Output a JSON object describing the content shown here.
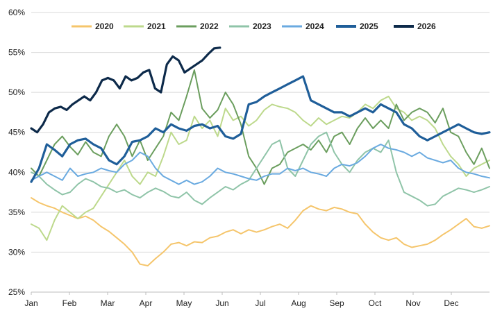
{
  "chart_data": {
    "type": "line",
    "title": "",
    "xlabel": "",
    "ylabel": "",
    "x_ticks": [
      "Jan",
      "Feb",
      "Mar",
      "Apr",
      "May",
      "Jun",
      "Jul",
      "Aug",
      "Sep",
      "Oct",
      "Nov",
      "Dec"
    ],
    "y_ticks": [
      "25%",
      "30%",
      "35%",
      "40%",
      "45%",
      "50%",
      "55%",
      "60%"
    ],
    "ylim": [
      25,
      60
    ],
    "xlim": [
      "Jan 1",
      "Dec 31"
    ],
    "grid": "horizontal",
    "legend_position": "top",
    "x_unit": "week of year",
    "series": [
      {
        "name": "2020",
        "color": "#F5C56B",
        "values": [
          36.8,
          36.2,
          35.8,
          35.5,
          35.0,
          34.6,
          34.2,
          34.5,
          34.0,
          33.2,
          32.6,
          31.8,
          31.0,
          30.0,
          28.5,
          28.3,
          29.2,
          30.0,
          31.0,
          31.2,
          30.8,
          31.3,
          31.2,
          31.8,
          32.0,
          32.5,
          32.8,
          32.3,
          32.8,
          32.5,
          32.8,
          33.2,
          33.5,
          33.0,
          34.0,
          35.2,
          35.8,
          35.4,
          35.2,
          35.6,
          35.4,
          35.0,
          34.8,
          33.5,
          32.5,
          31.8,
          31.5,
          31.8,
          31.0,
          30.6,
          30.8,
          31.0,
          31.5,
          32.2,
          32.8,
          33.5,
          34.2,
          33.2,
          33.0,
          33.3
        ]
      },
      {
        "name": "2021",
        "color": "#BDD98C",
        "values": [
          33.5,
          33.0,
          31.5,
          34.0,
          35.8,
          35.0,
          34.2,
          35.0,
          35.5,
          37.0,
          38.5,
          40.0,
          41.5,
          39.5,
          38.5,
          40.0,
          39.5,
          42.0,
          45.0,
          43.5,
          44.0,
          47.0,
          45.5,
          46.5,
          44.5,
          48.0,
          46.5,
          47.0,
          45.8,
          46.5,
          47.8,
          48.5,
          48.2,
          48.0,
          47.5,
          46.5,
          45.8,
          46.8,
          46.0,
          46.5,
          47.0,
          46.8,
          47.5,
          48.5,
          48.0,
          49.0,
          49.5,
          48.0,
          47.5,
          46.5,
          47.0,
          46.5,
          45.5,
          43.5,
          42.0,
          41.0,
          39.5,
          40.5,
          41.0,
          41.5
        ]
      },
      {
        "name": "2022",
        "color": "#6B9E5E",
        "values": [
          40.5,
          39.5,
          41.5,
          43.5,
          44.5,
          43.2,
          42.2,
          43.8,
          42.5,
          42.0,
          44.5,
          46.0,
          44.5,
          42.0,
          44.0,
          41.5,
          43.0,
          44.5,
          47.5,
          46.5,
          49.5,
          52.8,
          48.0,
          46.8,
          47.8,
          50.0,
          48.5,
          46.0,
          42.0,
          40.5,
          38.5,
          40.5,
          41.0,
          42.5,
          43.0,
          43.5,
          42.8,
          44.0,
          42.5,
          44.5,
          45.0,
          43.5,
          45.5,
          46.8,
          45.5,
          46.5,
          45.5,
          48.5,
          46.5,
          47.5,
          48.0,
          47.5,
          46.2,
          48.0,
          45.0,
          44.5,
          42.5,
          41.0,
          43.0,
          40.5
        ]
      },
      {
        "name": "2023",
        "color": "#8FC4A8",
        "values": [
          40.0,
          39.5,
          38.5,
          37.8,
          37.2,
          37.5,
          38.5,
          39.2,
          38.8,
          38.2,
          38.0,
          37.5,
          37.8,
          37.2,
          36.8,
          37.5,
          38.0,
          37.6,
          37.0,
          36.8,
          37.5,
          36.5,
          36.0,
          36.8,
          37.5,
          38.2,
          37.8,
          38.5,
          39.0,
          40.5,
          42.0,
          43.5,
          44.0,
          40.5,
          39.5,
          41.5,
          43.5,
          44.5,
          45.0,
          42.5,
          41.0,
          40.0,
          41.5,
          42.5,
          43.0,
          42.5,
          44.0,
          40.0,
          37.5,
          37.0,
          36.5,
          35.8,
          36.0,
          37.0,
          37.5,
          38.0,
          37.8,
          37.5,
          37.8,
          38.2
        ]
      },
      {
        "name": "2024",
        "color": "#6AAAE0",
        "values": [
          39.0,
          39.5,
          40.0,
          39.5,
          39.0,
          40.5,
          39.5,
          39.8,
          40.0,
          40.5,
          40.2,
          40.0,
          41.0,
          41.5,
          42.5,
          42.0,
          40.5,
          39.5,
          39.0,
          38.5,
          39.0,
          38.5,
          38.8,
          39.5,
          40.5,
          40.0,
          39.8,
          39.5,
          39.2,
          39.0,
          39.5,
          39.8,
          39.8,
          40.5,
          40.2,
          40.5,
          40.0,
          39.8,
          39.5,
          40.5,
          41.0,
          40.8,
          41.2,
          42.0,
          43.0,
          43.5,
          43.0,
          42.8,
          42.5,
          42.0,
          42.5,
          41.8,
          41.5,
          41.2,
          41.5,
          40.5,
          40.0,
          39.8,
          39.5,
          39.3
        ]
      },
      {
        "name": "2025",
        "color": "#1F5E99",
        "values": [
          38.8,
          40.5,
          43.5,
          42.8,
          42.0,
          43.5,
          44.0,
          44.2,
          43.5,
          43.0,
          41.5,
          41.0,
          42.0,
          43.8,
          44.0,
          44.5,
          45.5,
          45.0,
          46.0,
          45.5,
          45.2,
          45.8,
          46.0,
          45.5,
          45.8,
          44.5,
          44.2,
          44.8,
          48.5,
          48.8,
          49.5,
          50.0,
          50.5,
          51.0,
          51.5,
          52.0,
          49.0,
          48.5,
          48.0,
          47.5,
          47.5,
          47.0,
          47.5,
          48.0,
          47.5,
          48.5,
          48.0,
          47.5,
          46.0,
          45.5,
          44.5,
          44.0,
          44.5,
          45.0,
          45.5,
          46.0,
          45.5,
          45.0,
          44.8,
          45.0
        ]
      },
      {
        "name": "2026",
        "color": "#0D2A4A",
        "values": [
          45.5,
          45.0,
          46.0,
          47.5,
          48.0,
          48.2,
          47.8,
          48.5,
          49.0,
          49.5,
          49.0,
          50.0,
          51.5,
          51.8,
          51.5,
          50.5,
          52.0,
          51.5,
          51.8,
          52.5,
          52.8,
          50.5,
          50.0,
          53.5,
          54.5,
          54.0,
          52.5,
          53.0,
          53.5,
          54.0,
          54.8,
          55.5,
          55.6
        ]
      }
    ]
  }
}
